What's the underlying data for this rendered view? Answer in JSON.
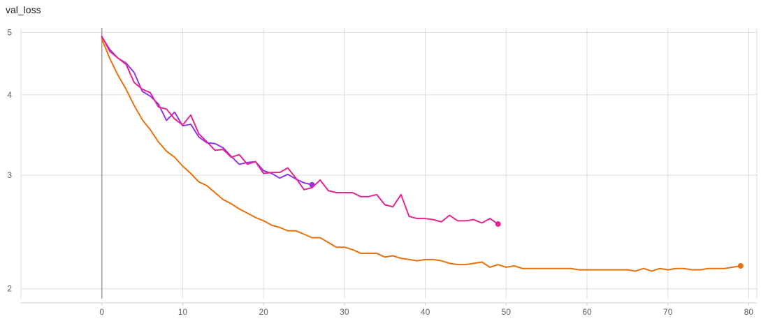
{
  "chart_data": {
    "type": "line",
    "title": "val_loss",
    "xlabel": "",
    "ylabel": "",
    "y_scale": "log",
    "xlim": [
      -10,
      81
    ],
    "ylim": [
      1.93,
      5.08
    ],
    "x_ticks": [
      0,
      10,
      20,
      30,
      40,
      50,
      60,
      70,
      80
    ],
    "y_ticks": [
      2,
      3,
      4,
      5
    ],
    "grid": true,
    "colors": {
      "grid": "#dddddd",
      "axis_zero": "#9e9e9e",
      "tick_text": "#616161"
    },
    "series": [
      {
        "color": "#e8710a",
        "x": [
          0,
          1,
          2,
          3,
          4,
          5,
          6,
          7,
          8,
          9,
          10,
          11,
          12,
          13,
          14,
          15,
          16,
          17,
          18,
          19,
          20,
          21,
          22,
          23,
          24,
          25,
          26,
          27,
          28,
          29,
          30,
          31,
          32,
          33,
          34,
          35,
          36,
          37,
          38,
          39,
          40,
          41,
          42,
          43,
          44,
          45,
          46,
          47,
          48,
          49,
          50,
          51,
          52,
          53,
          54,
          55,
          56,
          57,
          58,
          59,
          60,
          61,
          62,
          63,
          64,
          65,
          66,
          67,
          68,
          69,
          70,
          71,
          72,
          73,
          74,
          75,
          76,
          77,
          78,
          79
        ],
        "y": [
          4.88,
          4.55,
          4.29,
          4.08,
          3.85,
          3.66,
          3.53,
          3.38,
          3.27,
          3.2,
          3.1,
          3.02,
          2.93,
          2.89,
          2.82,
          2.75,
          2.71,
          2.66,
          2.62,
          2.58,
          2.55,
          2.51,
          2.49,
          2.46,
          2.46,
          2.43,
          2.4,
          2.4,
          2.36,
          2.32,
          2.32,
          2.3,
          2.27,
          2.27,
          2.27,
          2.24,
          2.25,
          2.23,
          2.22,
          2.21,
          2.22,
          2.22,
          2.21,
          2.19,
          2.18,
          2.18,
          2.19,
          2.2,
          2.16,
          2.18,
          2.16,
          2.17,
          2.15,
          2.15,
          2.15,
          2.15,
          2.15,
          2.15,
          2.15,
          2.14,
          2.14,
          2.14,
          2.14,
          2.14,
          2.14,
          2.14,
          2.13,
          2.15,
          2.13,
          2.15,
          2.14,
          2.15,
          2.15,
          2.14,
          2.14,
          2.15,
          2.15,
          2.15,
          2.16,
          2.17
        ]
      },
      {
        "color": "#9334e6",
        "x": [
          0,
          1,
          2,
          3,
          4,
          5,
          6,
          7,
          8,
          9,
          10,
          11,
          12,
          13,
          14,
          15,
          16,
          17,
          18,
          19,
          20,
          21,
          22,
          23,
          24,
          25,
          26
        ],
        "y": [
          4.92,
          4.7,
          4.56,
          4.48,
          4.33,
          4.05,
          3.98,
          3.87,
          3.65,
          3.76,
          3.58,
          3.6,
          3.44,
          3.37,
          3.36,
          3.31,
          3.21,
          3.12,
          3.14,
          3.15,
          3.05,
          3.02,
          2.97,
          3.01,
          2.96,
          2.92,
          2.9
        ]
      },
      {
        "color": "#e52592",
        "x": [
          0,
          1,
          2,
          3,
          4,
          5,
          6,
          7,
          8,
          9,
          10,
          11,
          12,
          13,
          14,
          15,
          16,
          17,
          18,
          19,
          20,
          21,
          22,
          23,
          24,
          25,
          26,
          27,
          28,
          29,
          30,
          31,
          32,
          33,
          34,
          35,
          36,
          37,
          38,
          39,
          40,
          41,
          42,
          43,
          44,
          45,
          46,
          47,
          48,
          49
        ],
        "y": [
          4.93,
          4.67,
          4.56,
          4.46,
          4.18,
          4.08,
          4.03,
          3.83,
          3.8,
          3.67,
          3.59,
          3.72,
          3.48,
          3.38,
          3.28,
          3.29,
          3.2,
          3.23,
          3.12,
          3.15,
          3.02,
          3.03,
          3.03,
          3.08,
          2.97,
          2.85,
          2.87,
          2.95,
          2.84,
          2.82,
          2.82,
          2.82,
          2.78,
          2.78,
          2.8,
          2.7,
          2.68,
          2.8,
          2.59,
          2.57,
          2.57,
          2.56,
          2.54,
          2.6,
          2.55,
          2.55,
          2.56,
          2.53,
          2.57,
          2.52
        ]
      }
    ]
  }
}
